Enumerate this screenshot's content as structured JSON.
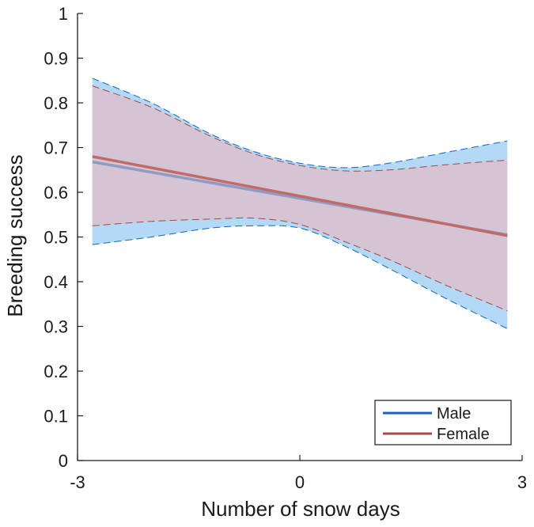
{
  "chart_data": {
    "type": "line",
    "title": "",
    "xlabel": "Number of snow days",
    "ylabel": "Breeding success",
    "xlim": [
      -3,
      3
    ],
    "ylim": [
      0,
      1
    ],
    "xticks": [
      -3,
      0,
      3
    ],
    "xtick_labels": [
      "-3",
      "0",
      "3"
    ],
    "yticks": [
      0,
      0.1,
      0.2,
      0.3,
      0.4,
      0.5,
      0.6,
      0.7,
      0.8,
      0.9,
      1
    ],
    "ytick_labels": [
      "0",
      "0.1",
      "0.2",
      "0.3",
      "0.4",
      "0.5",
      "0.6",
      "0.7",
      "0.8",
      "0.9",
      "1"
    ],
    "legend_position": "bottom-right",
    "grid": false,
    "series": [
      {
        "name": "Male",
        "color": "#1565c0",
        "band_color": "#b3d9f7",
        "line_color": "#8e9bc2",
        "x": [
          -2.8,
          2.8
        ],
        "y": [
          0.668,
          0.505
        ],
        "band_x": [
          -2.8,
          -2.0,
          -1.2,
          -0.6,
          0.0,
          0.6,
          1.2,
          2.0,
          2.8
        ],
        "band_upper": [
          0.855,
          0.8,
          0.73,
          0.69,
          0.665,
          0.655,
          0.665,
          0.69,
          0.715
        ],
        "band_lower": [
          0.483,
          0.5,
          0.52,
          0.525,
          0.52,
          0.48,
          0.43,
          0.36,
          0.295
        ]
      },
      {
        "name": "Female",
        "color": "#a84848",
        "band_color": "#d5c4d3",
        "line_color": "#c06b68",
        "x": [
          -2.8,
          2.8
        ],
        "y": [
          0.68,
          0.503
        ],
        "band_x": [
          -2.8,
          -2.0,
          -1.2,
          -0.6,
          0.0,
          0.6,
          1.2,
          2.0,
          2.8
        ],
        "band_upper": [
          0.838,
          0.79,
          0.725,
          0.685,
          0.66,
          0.648,
          0.65,
          0.662,
          0.672
        ],
        "band_lower": [
          0.525,
          0.535,
          0.54,
          0.542,
          0.528,
          0.49,
          0.45,
          0.39,
          0.335
        ]
      }
    ]
  }
}
